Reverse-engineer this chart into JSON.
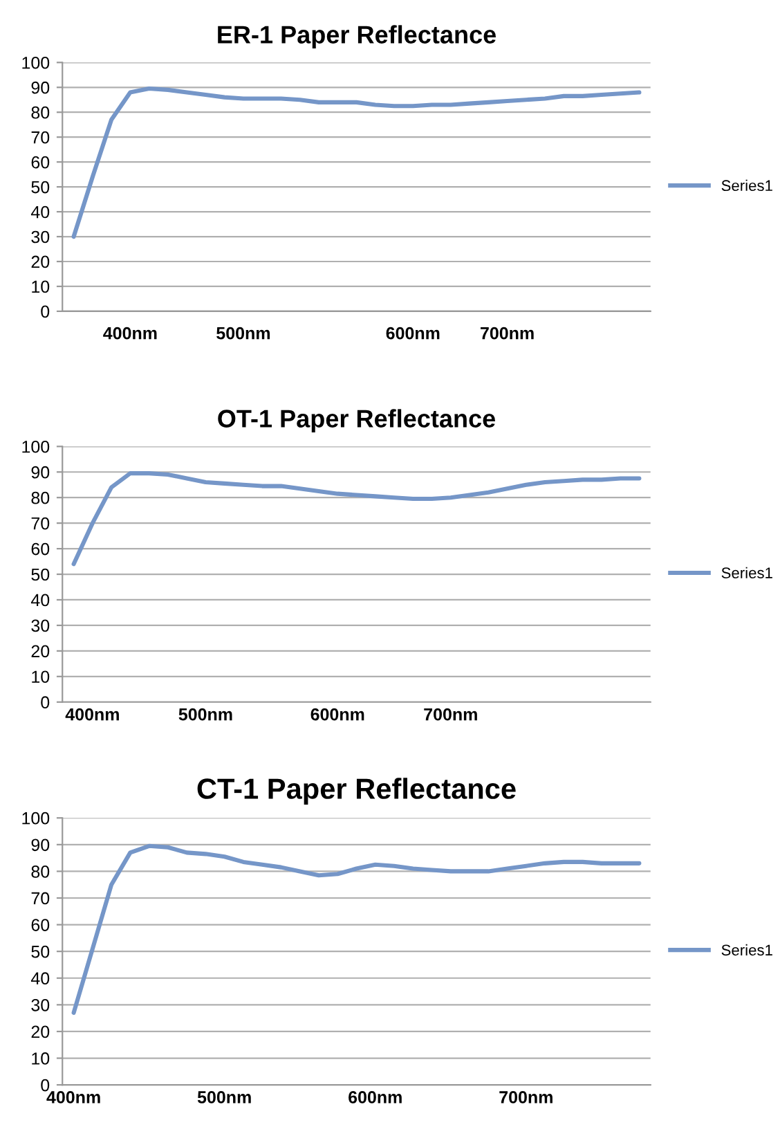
{
  "chart_data": [
    {
      "type": "line",
      "title": "ER-1 Paper Reflectance",
      "categories": [
        null,
        null,
        null,
        "400nm",
        null,
        null,
        null,
        null,
        null,
        "500nm",
        null,
        null,
        null,
        null,
        null,
        null,
        null,
        null,
        "600nm",
        null,
        null,
        null,
        null,
        "700nm",
        null,
        null,
        null,
        null,
        null,
        null,
        null
      ],
      "series": [
        {
          "name": "Series1",
          "color": "#7596c8",
          "values": [
            30,
            54,
            77,
            88,
            89.5,
            89,
            88,
            87,
            86,
            85.5,
            85.5,
            85.5,
            85,
            84,
            84,
            84,
            83,
            82.5,
            82.5,
            83,
            83,
            83.5,
            84,
            84.5,
            85,
            85.5,
            86.5,
            86.5,
            87,
            87.5,
            88
          ]
        }
      ],
      "ylim": [
        0,
        100
      ],
      "yticks": [
        0,
        10,
        20,
        30,
        40,
        50,
        60,
        70,
        80,
        90,
        100
      ],
      "grid": "y",
      "legend": "right",
      "marker": "none",
      "line_style": "solid"
    },
    {
      "type": "line",
      "title": "OT-1 Paper Reflectance",
      "categories": [
        null,
        "400nm",
        null,
        null,
        null,
        null,
        null,
        "500nm",
        null,
        null,
        null,
        null,
        null,
        null,
        "600nm",
        null,
        null,
        null,
        null,
        null,
        "700nm",
        null,
        null,
        null,
        null,
        null,
        null,
        null,
        null,
        null,
        null
      ],
      "series": [
        {
          "name": "Series1",
          "color": "#7596c8",
          "values": [
            54,
            70,
            84,
            89.5,
            89.5,
            89,
            87.5,
            86,
            85.5,
            85,
            84.5,
            84.5,
            83.5,
            82.5,
            81.5,
            81,
            80.5,
            80,
            79.5,
            79.5,
            80,
            81,
            82,
            83.5,
            85,
            86,
            86.5,
            87,
            87,
            87.5,
            87.5
          ]
        }
      ],
      "ylim": [
        0,
        100
      ],
      "yticks": [
        0,
        10,
        20,
        30,
        40,
        50,
        60,
        70,
        80,
        90,
        100
      ],
      "grid": "y",
      "legend": "right",
      "marker": "none",
      "line_style": "solid"
    },
    {
      "type": "line",
      "title": "CT-1 Paper Reflectance",
      "categories": [
        "400nm",
        null,
        null,
        null,
        null,
        null,
        null,
        null,
        "500nm",
        null,
        null,
        null,
        null,
        null,
        null,
        null,
        "600nm",
        null,
        null,
        null,
        null,
        null,
        null,
        null,
        "700nm",
        null,
        null,
        null,
        null,
        null,
        null
      ],
      "series": [
        {
          "name": "Series1",
          "color": "#7596c8",
          "values": [
            27,
            51,
            75,
            87,
            89.5,
            89,
            87,
            86.5,
            85.5,
            83.5,
            82.5,
            81.5,
            80,
            78.5,
            79,
            81,
            82.5,
            82,
            81,
            80.5,
            80,
            80,
            80,
            81,
            82,
            83,
            83.5,
            83.5,
            83,
            83,
            83
          ]
        }
      ],
      "ylim": [
        0,
        100
      ],
      "yticks": [
        0,
        10,
        20,
        30,
        40,
        50,
        60,
        70,
        80,
        90,
        100
      ],
      "grid": "y",
      "legend": "right",
      "marker": "none",
      "line_style": "solid"
    }
  ]
}
